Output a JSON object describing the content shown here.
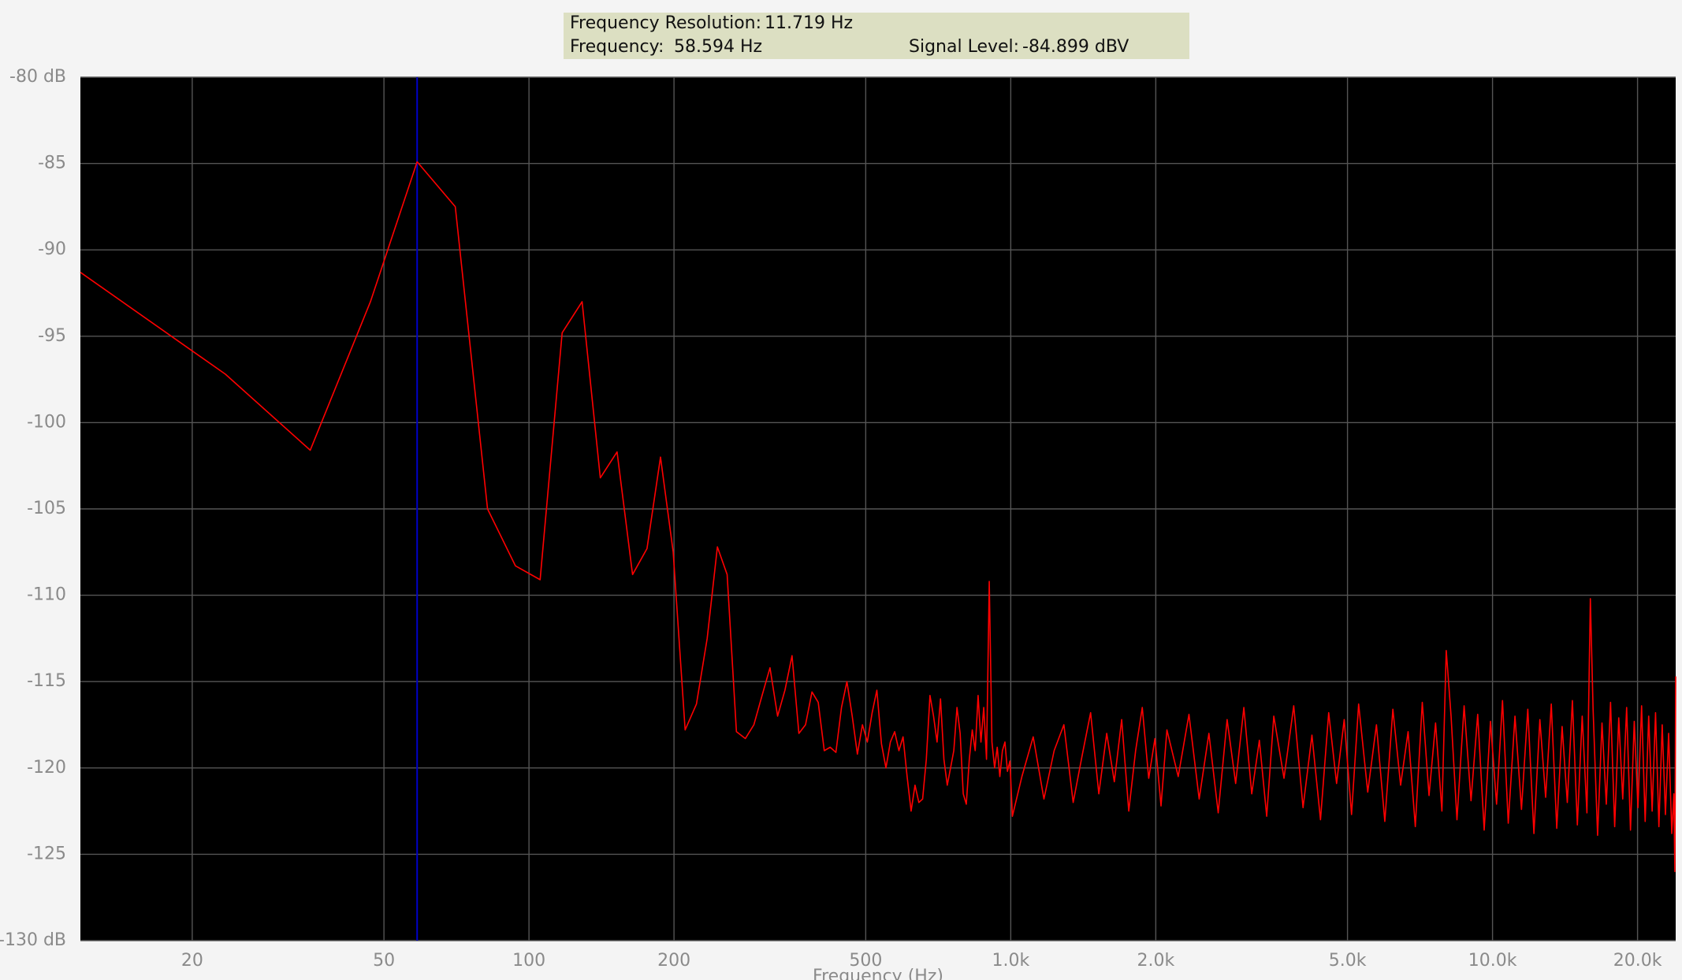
{
  "chart_data": {
    "type": "line",
    "info": {
      "resolution_label": "Frequency Resolution:",
      "resolution": "11.719 Hz",
      "frequency_label": "Frequency:",
      "level_label": "Signal Level:",
      "level": "-84.899 dBV"
    },
    "cursor": {
      "value": 58.594,
      "label": "58.594 Hz"
    },
    "cursor_color": "#0000c8",
    "x_label": "Frequency (Hz)",
    "log_x": true,
    "grid": true,
    "color": "#ff0000",
    "xlim": [
      11.719,
      24000
    ],
    "xticks": [
      20,
      50,
      100,
      200,
      500,
      {
        "value": 1000,
        "label": "1.0k"
      },
      {
        "value": 2000,
        "label": "2.0k"
      },
      {
        "value": 5000,
        "label": "5.0k"
      },
      {
        "value": 10000,
        "label": "10.0k"
      },
      {
        "value": 20000,
        "label": "20.0k"
      }
    ],
    "ylim": [
      -130,
      -80
    ],
    "yticks": [
      {
        "value": -130,
        "label": "-130 dB"
      },
      -125,
      -120,
      -115,
      -110,
      -105,
      -100,
      -95,
      -90,
      -85,
      {
        "value": -80,
        "label": "-80 dB"
      }
    ],
    "x": [
      11.719,
      23.438,
      35.156,
      46.875,
      58.594,
      70.313,
      82.031,
      93.75,
      105.469,
      117.188,
      128.906,
      140.625,
      152.344,
      164.063,
      175.781,
      187.5,
      199.219,
      210.938,
      222.656,
      234.375,
      246.094,
      257.813,
      269.531,
      281.25,
      292.969,
      304.688,
      316.406,
      328.125,
      339.844,
      351.563,
      363.281,
      375,
      386.719,
      398.438,
      410.156,
      421.875,
      433.594,
      445.313,
      457.031,
      468.75,
      480.469,
      492.188,
      503.906,
      515.625,
      527.344,
      539.063,
      550.781,
      562.5,
      574.219,
      585.938,
      597.656,
      609.375,
      621.094,
      632.813,
      644.531,
      656.25,
      667.969,
      679.688,
      691.406,
      703.125,
      714.844,
      726.563,
      738.281,
      750,
      761.719,
      773.438,
      785.156,
      796.875,
      808.594,
      820.313,
      832.031,
      843.75,
      855.469,
      867.188,
      878.906,
      890.625,
      902.344,
      914.063,
      925.781,
      937.5,
      949.219,
      960.938,
      972.656,
      984.375,
      996.094,
      1007.813,
      1054.688,
      1113.281,
      1171.875,
      1230.469,
      1289.063,
      1347.656,
      1406.25,
      1464.844,
      1523.438,
      1582.031,
      1640.625,
      1699.219,
      1757.813,
      1816.406,
      1875,
      1933.594,
      1992.188,
      2050.781,
      2109.375,
      2226.563,
      2343.75,
      2460.938,
      2578.125,
      2695.313,
      2812.5,
      2929.688,
      3046.875,
      3164.063,
      3281.25,
      3398.438,
      3515.625,
      3691.406,
      3867.188,
      4042.969,
      4218.75,
      4394.531,
      4570.313,
      4746.094,
      4921.875,
      5097.656,
      5273.438,
      5507.813,
      5742.188,
      5976.563,
      6210.938,
      6445.313,
      6679.688,
      6914.063,
      7148.438,
      7382.813,
      7617.188,
      7851.563,
      8015.625,
      8203.125,
      8437.5,
      8730.469,
      9023.438,
      9316.406,
      9609.375,
      9902.344,
      10195.313,
      10488.281,
      10781.25,
      11132.813,
      11484.375,
      11835.938,
      12187.5,
      12539.063,
      12890.625,
      13242.188,
      13593.75,
      13945.313,
      14296.875,
      14648.438,
      15000,
      15351.563,
      15703.125,
      15960.938,
      16171.875,
      16523.438,
      16875,
      17226.563,
      17578.125,
      17929.688,
      18281.25,
      18632.813,
      18984.375,
      19335.938,
      19687.5,
      20039.063,
      20390.625,
      20742.188,
      21093.75,
      21445.313,
      21796.875,
      22148.438,
      22500,
      22851.563,
      23203.125,
      23554.688,
      23789.063,
      23906.25,
      24000
    ],
    "values": [
      -91.3,
      -97.2,
      -101.6,
      -93.0,
      -84.9,
      -87.5,
      -105.0,
      -108.3,
      -109.1,
      -94.8,
      -93.0,
      -103.2,
      -101.7,
      -108.8,
      -107.3,
      -102.0,
      -107.5,
      -117.8,
      -116.3,
      -112.5,
      -107.2,
      -108.8,
      -117.9,
      -118.3,
      -117.5,
      -115.8,
      -114.2,
      -117.0,
      -115.5,
      -113.5,
      -118.0,
      -117.5,
      -115.6,
      -116.2,
      -119.0,
      -118.8,
      -119.1,
      -116.5,
      -115.0,
      -117.0,
      -119.2,
      -117.5,
      -118.5,
      -116.8,
      -115.5,
      -118.6,
      -120.0,
      -118.5,
      -117.9,
      -119.0,
      -118.2,
      -120.5,
      -122.5,
      -121.0,
      -122.0,
      -121.8,
      -119.5,
      -115.8,
      -117.0,
      -118.5,
      -116.0,
      -119.5,
      -121.0,
      -120.0,
      -119.0,
      -116.5,
      -118.0,
      -121.5,
      -122.1,
      -119.5,
      -117.8,
      -119.0,
      -115.8,
      -118.5,
      -116.5,
      -119.5,
      -109.2,
      -118.5,
      -120.0,
      -118.8,
      -120.5,
      -119.0,
      -118.5,
      -120.2,
      -119.6,
      -122.8,
      -120.5,
      -118.2,
      -121.8,
      -119.0,
      -117.5,
      -122.0,
      -119.3,
      -116.8,
      -121.5,
      -118.0,
      -120.8,
      -117.2,
      -122.5,
      -119.0,
      -116.5,
      -120.6,
      -118.3,
      -122.2,
      -117.8,
      -120.5,
      -116.9,
      -121.8,
      -118.0,
      -122.6,
      -117.2,
      -120.9,
      -116.5,
      -121.5,
      -118.4,
      -122.8,
      -117.0,
      -120.6,
      -116.4,
      -122.3,
      -118.1,
      -123.0,
      -116.8,
      -120.9,
      -117.2,
      -122.7,
      -116.3,
      -121.4,
      -117.5,
      -123.1,
      -116.6,
      -121.0,
      -117.9,
      -123.4,
      -116.2,
      -121.6,
      -117.4,
      -122.5,
      -113.2,
      -117.0,
      -123.0,
      -116.4,
      -121.9,
      -116.9,
      -123.6,
      -117.3,
      -122.1,
      -116.1,
      -123.2,
      -117.0,
      -122.4,
      -116.6,
      -123.8,
      -117.2,
      -121.7,
      -116.3,
      -123.5,
      -117.6,
      -122.0,
      -116.1,
      -123.3,
      -117.0,
      -122.6,
      -110.2,
      -116.6,
      -123.9,
      -117.4,
      -122.1,
      -116.2,
      -123.4,
      -117.1,
      -121.8,
      -116.5,
      -123.6,
      -117.3,
      -122.3,
      -116.4,
      -123.1,
      -117.0,
      -122.5,
      -116.8,
      -123.4,
      -117.5,
      -122.7,
      -118.0,
      -123.8,
      -121.5,
      -126.0,
      -114.7
    ]
  }
}
